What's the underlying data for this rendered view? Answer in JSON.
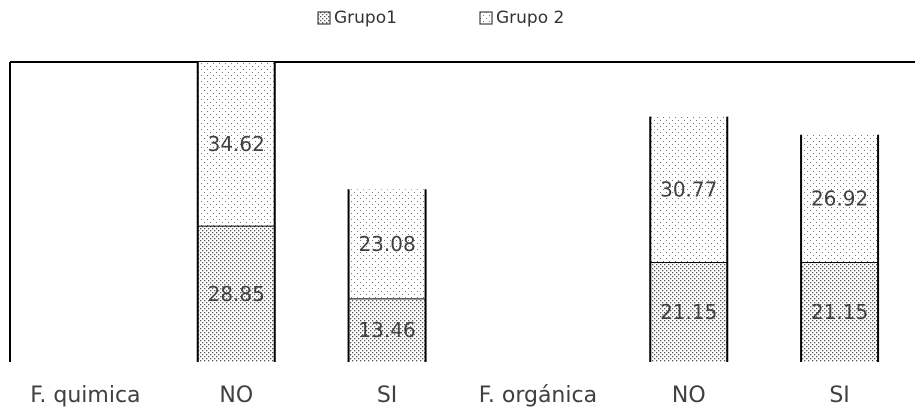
{
  "chart_data": {
    "type": "bar",
    "stacked": true,
    "categories": [
      "F. quimica",
      "NO",
      "SI",
      "F. orgánica",
      "NO",
      "SI"
    ],
    "series": [
      {
        "name": "Grupo1",
        "values": [
          null,
          28.85,
          13.46,
          null,
          21.15,
          21.15
        ],
        "pattern": "dense-dots"
      },
      {
        "name": "Grupo 2",
        "values": [
          null,
          34.62,
          23.08,
          null,
          30.77,
          26.92
        ],
        "pattern": "sparse-dots"
      }
    ],
    "title": "",
    "xlabel": "",
    "ylabel": "",
    "ylim": [
      0,
      63.47
    ],
    "grid": false,
    "legend_position": "top-center",
    "colors": {
      "bar_outline": "#000000",
      "text": "#404040",
      "dots": "#555555"
    }
  }
}
